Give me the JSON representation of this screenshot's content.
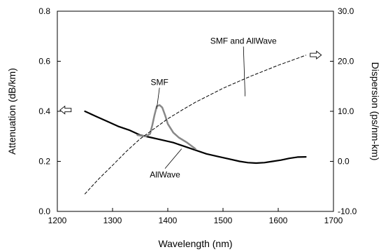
{
  "chart_data": {
    "type": "line",
    "xlabel": "Wavelength (nm)",
    "ylabel_left": "Attenuation (dB/km)",
    "ylabel_right": "Dispersion (ps/nm-km)",
    "xlim": [
      1200,
      1700
    ],
    "ylim_left": [
      0.0,
      0.8
    ],
    "ylim_right": [
      -10.0,
      30.0
    ],
    "x_ticks": [
      "1200",
      "1300",
      "1400",
      "1500",
      "1600",
      "1700"
    ],
    "y_left_ticks": [
      "0.0",
      "0.2",
      "0.4",
      "0.6",
      "0.8"
    ],
    "y_right_ticks": [
      "-10.0",
      "0.0",
      "10.0",
      "20.0",
      "30.0"
    ],
    "grid": false,
    "series": [
      {
        "name": "AllWave",
        "axis": "left",
        "style": "solid",
        "color": "#000000",
        "points": [
          [
            1250,
            0.4
          ],
          [
            1270,
            0.38
          ],
          [
            1290,
            0.36
          ],
          [
            1310,
            0.34
          ],
          [
            1330,
            0.325
          ],
          [
            1350,
            0.305
          ],
          [
            1370,
            0.295
          ],
          [
            1390,
            0.285
          ],
          [
            1410,
            0.275
          ],
          [
            1430,
            0.26
          ],
          [
            1450,
            0.245
          ],
          [
            1470,
            0.23
          ],
          [
            1490,
            0.22
          ],
          [
            1510,
            0.21
          ],
          [
            1530,
            0.2
          ],
          [
            1545,
            0.195
          ],
          [
            1560,
            0.193
          ],
          [
            1575,
            0.195
          ],
          [
            1590,
            0.2
          ],
          [
            1605,
            0.205
          ],
          [
            1620,
            0.212
          ],
          [
            1635,
            0.217
          ],
          [
            1650,
            0.218
          ]
        ]
      },
      {
        "name": "SMF",
        "axis": "left",
        "style": "solid",
        "color": "#888888",
        "points": [
          [
            1345,
            0.305
          ],
          [
            1360,
            0.3
          ],
          [
            1368,
            0.31
          ],
          [
            1372,
            0.345
          ],
          [
            1376,
            0.385
          ],
          [
            1380,
            0.42
          ],
          [
            1385,
            0.425
          ],
          [
            1390,
            0.415
          ],
          [
            1395,
            0.385
          ],
          [
            1400,
            0.35
          ],
          [
            1410,
            0.315
          ],
          [
            1420,
            0.295
          ],
          [
            1435,
            0.275
          ],
          [
            1450,
            0.25
          ]
        ]
      },
      {
        "name": "SMF and AllWave",
        "axis": "right",
        "style": "dashed",
        "color": "#000000",
        "points": [
          [
            1250,
            -6.5
          ],
          [
            1275,
            -3.5
          ],
          [
            1300,
            -0.8
          ],
          [
            1325,
            2.0
          ],
          [
            1350,
            4.5
          ],
          [
            1375,
            6.5
          ],
          [
            1400,
            8.5
          ],
          [
            1425,
            10.2
          ],
          [
            1450,
            11.8
          ],
          [
            1475,
            13.2
          ],
          [
            1500,
            14.6
          ],
          [
            1525,
            15.8
          ],
          [
            1550,
            17.0
          ],
          [
            1575,
            18.1
          ],
          [
            1600,
            19.2
          ],
          [
            1625,
            20.2
          ],
          [
            1650,
            21.2
          ]
        ]
      }
    ],
    "annotations": [
      {
        "text": "SMF",
        "x": 1385,
        "y_left": 0.505,
        "target": [
          1380,
          0.41
        ]
      },
      {
        "text": "AllWave",
        "x": 1395,
        "y_left": 0.135,
        "target": [
          1425,
          0.25
        ]
      },
      {
        "text": "SMF and AllWave",
        "x": 1537,
        "y_left": 0.67,
        "target": [
          1540,
          0.46
        ]
      }
    ],
    "axis_arrows": [
      {
        "direction": "left",
        "x": 1215,
        "y_left": 0.405
      },
      {
        "direction": "right",
        "x": 1668,
        "y_left": 0.625
      }
    ]
  }
}
